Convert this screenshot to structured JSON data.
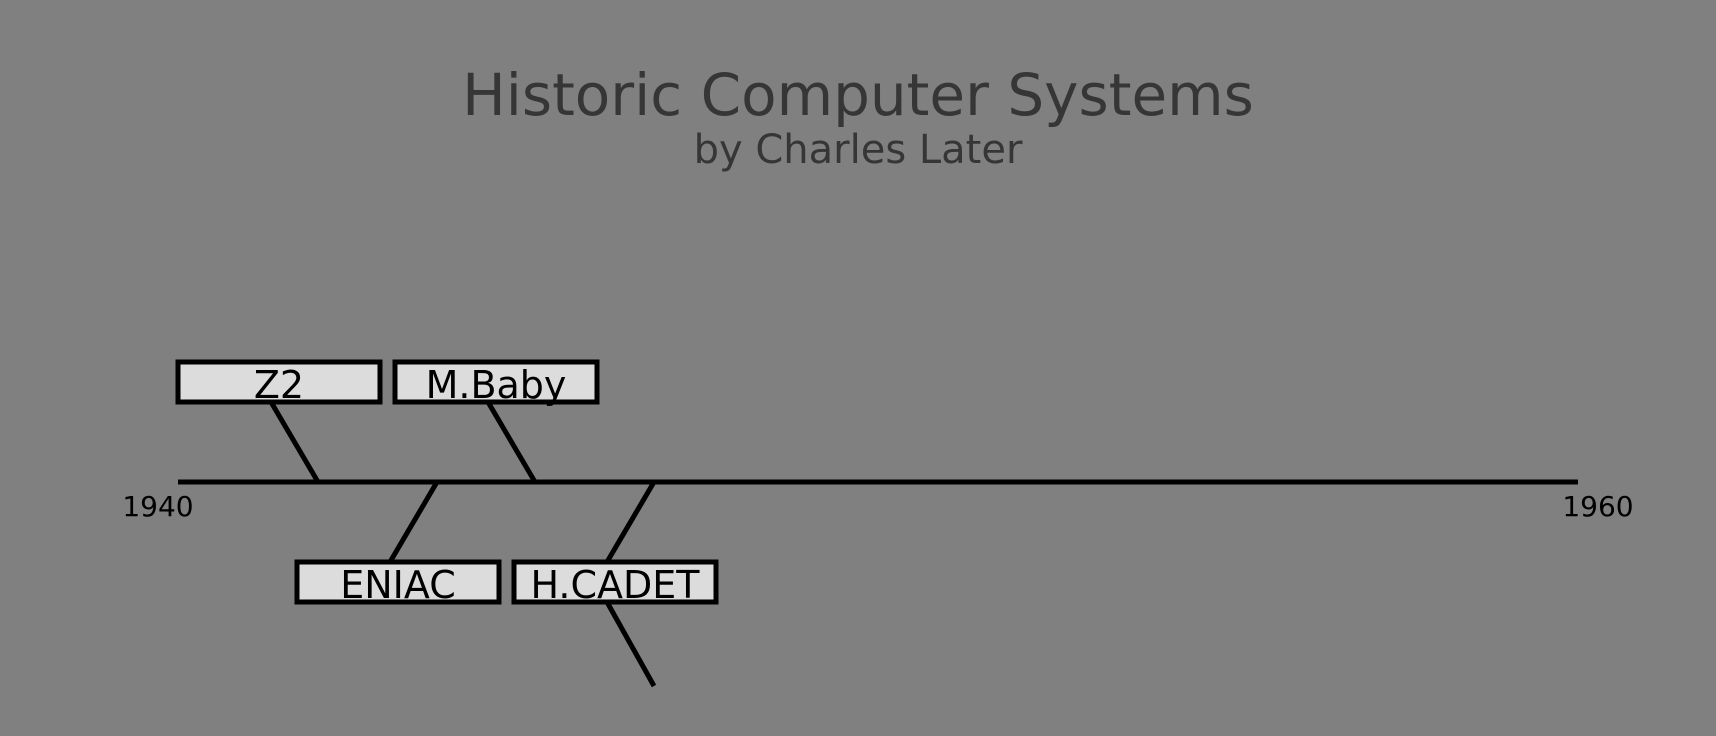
{
  "title": "Historic Computer Systems",
  "subtitle": "by Charles Later",
  "timeline": {
    "start_label": "1940",
    "end_label": "1960",
    "start_year": 1940,
    "end_year": 1960,
    "events": [
      {
        "label": "Z2",
        "year": 1942,
        "side": "above"
      },
      {
        "label": "ENIAC",
        "year": 1943.7,
        "side": "below"
      },
      {
        "label": "M.Baby",
        "year": 1945.1,
        "side": "above"
      },
      {
        "label": "H.CADET",
        "year": 1946.8,
        "side": "below",
        "duration_end_side": "below"
      }
    ]
  },
  "colors": {
    "background": "#808080",
    "title": "#363636",
    "label_box_fill": "#dcdcdc",
    "line": "#000000"
  }
}
